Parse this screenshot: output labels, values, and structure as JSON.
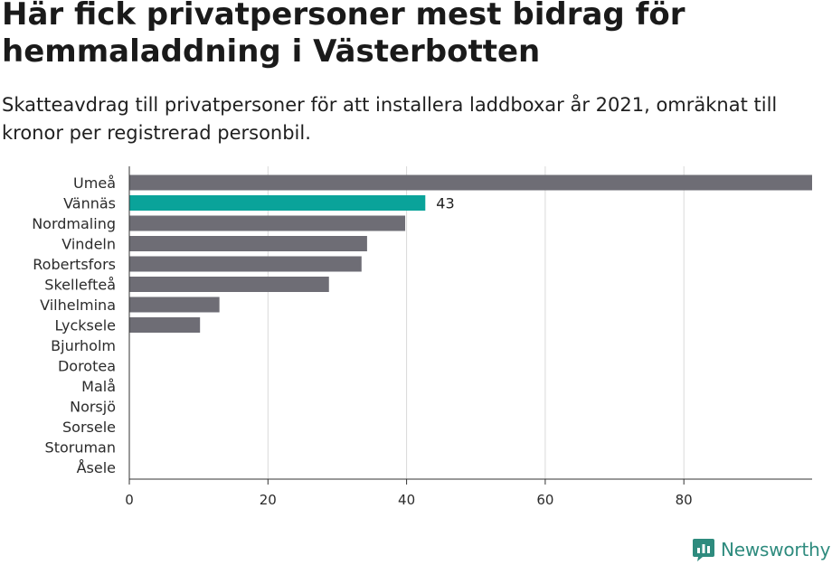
{
  "header": {
    "title": "Här fick privatpersoner mest bidrag för hemmaladdning i Västerbotten",
    "subtitle": "Skatteavdrag till privatpersoner för att installera laddboxar år 2021, omräknat till kronor per registrerad personbil."
  },
  "brand": {
    "name": "Newsworthy",
    "icon": "newsworthy-logo-icon",
    "color": "#2e8b7e"
  },
  "colors": {
    "bar": "#6e6d75",
    "highlight": "#0aa39a",
    "grid": "#d9d9d9"
  },
  "chart_data": {
    "type": "bar",
    "orientation": "horizontal",
    "categories": [
      "Umeå",
      "Vännäs",
      "Nordmaling",
      "Vindeln",
      "Robertsfors",
      "Skellefteå",
      "Vilhelmina",
      "Lycksele",
      "Bjurholm",
      "Dorotea",
      "Malå",
      "Norsjö",
      "Sorsele",
      "Storuman",
      "Åsele"
    ],
    "values": [
      98.5,
      42.7,
      39.8,
      34.3,
      33.5,
      28.8,
      13.0,
      10.2,
      0,
      0,
      0,
      0,
      0,
      0,
      0
    ],
    "highlight": "Vännäs",
    "data_labels": {
      "Vännäs": "43"
    },
    "xticks": [
      0,
      20,
      40,
      60,
      80
    ],
    "xlim": [
      0,
      98.5
    ],
    "grid": true,
    "xlabel": "",
    "ylabel": ""
  }
}
